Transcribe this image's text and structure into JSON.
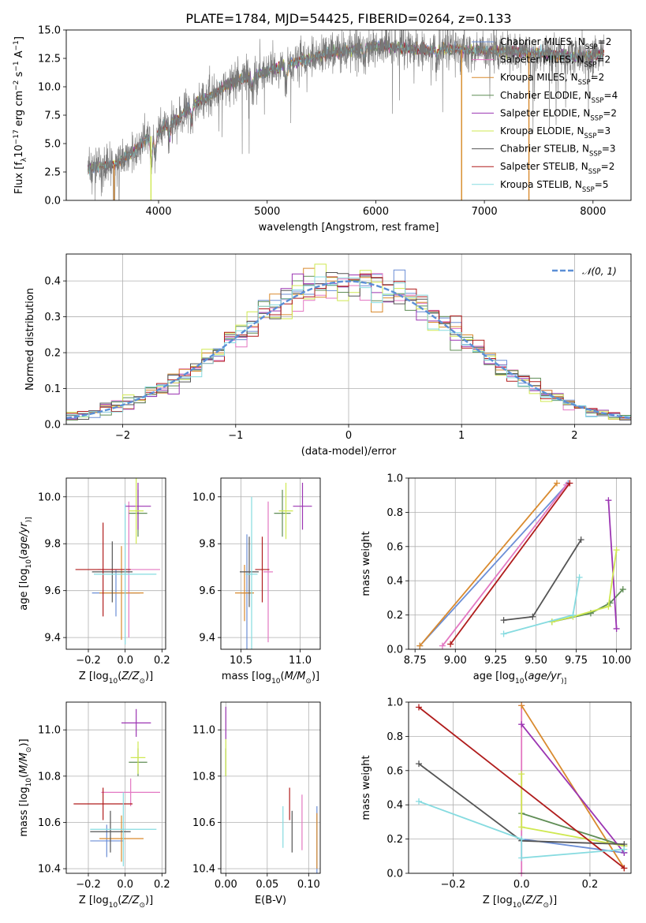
{
  "figure_title": "PLATE=1784, MJD=54425, FIBERID=0264, z=0.133",
  "series_colors": [
    "#6b8ed6",
    "#e377c2",
    "#d98a2e",
    "#5f8d55",
    "#9b34b2",
    "#cfe850",
    "#555555",
    "#b01c1c",
    "#86dbe0"
  ],
  "legend_entries": [
    {
      "name": "Chabrier MILES, N",
      "sub": "SSP",
      "suffix": "=2"
    },
    {
      "name": "Salpeter MILES, N",
      "sub": "SSP",
      "suffix": "=2"
    },
    {
      "name": "Kroupa MILES, N",
      "sub": "SSP",
      "suffix": "=2"
    },
    {
      "name": "Chabrier ELODIE, N",
      "sub": "SSP",
      "suffix": "=4"
    },
    {
      "name": "Salpeter ELODIE, N",
      "sub": "SSP",
      "suffix": "=2"
    },
    {
      "name": "Kroupa ELODIE, N",
      "sub": "SSP",
      "suffix": "=3"
    },
    {
      "name": "Chabrier STELIB, N",
      "sub": "SSP",
      "suffix": "=3"
    },
    {
      "name": "Salpeter STELIB, N",
      "sub": "SSP",
      "suffix": "=2"
    },
    {
      "name": "Kroupa STELIB, N",
      "sub": "SSP",
      "suffix": "=5"
    }
  ],
  "hist_legend": "𝒩(0, 1)",
  "chart_data": [
    {
      "id": "spectrum",
      "type": "line",
      "title": "PLATE=1784, MJD=54425, FIBERID=0264, z=0.133",
      "xlabel": "wavelength [Angstrom, rest frame]",
      "ylabel_parts": [
        "Flux [f",
        "λ",
        "10",
        "−17",
        " erg cm",
        "−2",
        " s",
        "−1",
        " A",
        "−1",
        "]"
      ],
      "xlim": [
        3150,
        8350
      ],
      "ylim": [
        0,
        15
      ],
      "xticks": [
        4000,
        5000,
        6000,
        7000,
        8000
      ],
      "xtick_labels": [
        "4000",
        "5000",
        "6000",
        "7000",
        "8000"
      ],
      "yticks": [
        0,
        2.5,
        5,
        7.5,
        10,
        12.5,
        15
      ],
      "ytick_labels": [
        "0.0",
        "2.5",
        "5.0",
        "7.5",
        "10.0",
        "12.5",
        "15.0"
      ],
      "grid": false,
      "legend_position": "right",
      "x_range": [
        3350,
        8100
      ],
      "continuum_knots": {
        "x": [
          3350,
          3500,
          3600,
          3700,
          3800,
          3900,
          4000,
          4100,
          4200,
          4300,
          4500,
          4700,
          4900,
          5100,
          5300,
          5500,
          5800,
          6000,
          6300,
          6500,
          6700,
          7000,
          7300,
          7600,
          7800,
          8000,
          8100
        ],
        "y": [
          2.8,
          3.0,
          3.2,
          3.8,
          4.5,
          5.5,
          6.0,
          6.8,
          7.3,
          8.4,
          9.3,
          10.5,
          11.0,
          11.7,
          12.3,
          12.8,
          13.3,
          13.6,
          13.4,
          13.2,
          13.3,
          13.2,
          13.1,
          12.9,
          12.6,
          12.8,
          13.0
        ]
      },
      "absorption_lines": [
        {
          "x": 3934,
          "depth": 2.5
        },
        {
          "x": 3969,
          "depth": 2.0
        },
        {
          "x": 4102,
          "depth": 1.2
        },
        {
          "x": 4304,
          "depth": 1.6
        },
        {
          "x": 4861,
          "depth": 1.0
        },
        {
          "x": 5175,
          "depth": 1.4
        },
        {
          "x": 5892,
          "depth": 1.2
        },
        {
          "x": 6563,
          "depth": 0.6
        }
      ],
      "dropouts": [
        {
          "x": 3590,
          "series": 2
        },
        {
          "x": 3930,
          "series": 5
        },
        {
          "x": 6790,
          "series": 5
        },
        {
          "x": 6790,
          "series": 2
        },
        {
          "x": 7410,
          "series": 2
        }
      ]
    },
    {
      "id": "residual-hist",
      "type": "bar",
      "xlabel": "(data-model)/error",
      "ylabel": "Normed distribution",
      "xlim": [
        -2.5,
        2.5
      ],
      "ylim": [
        0,
        0.475
      ],
      "xticks": [
        -2,
        -1,
        0,
        1,
        2
      ],
      "xtick_labels": [
        "−2",
        "−1",
        "0",
        "1",
        "2"
      ],
      "yticks": [
        0,
        0.1,
        0.2,
        0.3,
        0.4
      ],
      "ytick_labels": [
        "0.0",
        "0.1",
        "0.2",
        "0.3",
        "0.4"
      ],
      "grid": true,
      "legend_position": "top-right",
      "bin_width": 0.1,
      "reference_curve": "normal(0,1)"
    },
    {
      "id": "age-vs-Z",
      "type": "scatter",
      "xlabel_parts": [
        "Z [log",
        "10",
        "(",
        "Z/Z",
        "⊙",
        ")]"
      ],
      "ylabel_parts": [
        "age  [log",
        "10",
        "(",
        "age/yr",
        ")]"
      ],
      "xlim": [
        -0.32,
        0.22
      ],
      "ylim": [
        9.35,
        10.08
      ],
      "xticks": [
        -0.2,
        0.0,
        0.2
      ],
      "xtick_labels": [
        "−0.2",
        "0.0",
        "0.2"
      ],
      "yticks": [
        9.4,
        9.6,
        9.8,
        10.0
      ],
      "ytick_labels": [
        "9.4",
        "9.6",
        "9.8",
        "10.0"
      ],
      "grid": true,
      "points": [
        {
          "series": 0,
          "x": -0.05,
          "xerr": 0.13,
          "y": 9.59,
          "yerr": 0.1
        },
        {
          "series": 1,
          "x": 0.02,
          "xerr": 0.17,
          "y": 9.69,
          "yerr": 0.29
        },
        {
          "series": 2,
          "x": -0.02,
          "xerr": 0.12,
          "y": 9.59,
          "yerr": 0.2
        },
        {
          "series": 3,
          "x": 0.07,
          "xerr": 0.05,
          "y": 9.93,
          "yerr": 0.1
        },
        {
          "series": 4,
          "x": 0.07,
          "xerr": 0.07,
          "y": 9.96,
          "yerr": 0.1
        },
        {
          "series": 5,
          "x": 0.06,
          "xerr": 0.04,
          "y": 9.94,
          "yerr": 0.14
        },
        {
          "series": 6,
          "x": -0.07,
          "xerr": 0.11,
          "y": 9.68,
          "yerr": 0.13
        },
        {
          "series": 7,
          "x": -0.12,
          "xerr": 0.15,
          "y": 9.69,
          "yerr": 0.2
        },
        {
          "series": 8,
          "x": 0.0,
          "xerr": 0.17,
          "y": 9.67,
          "yerr": 0.3
        }
      ]
    },
    {
      "id": "age-vs-mass",
      "type": "scatter",
      "xlabel_parts": [
        "mass [log",
        "10",
        "(",
        "M/M",
        "⊙",
        ")]"
      ],
      "ylabel": "",
      "xlim": [
        10.33,
        11.17
      ],
      "ylim": [
        9.35,
        10.08
      ],
      "xticks": [
        10.5,
        11.0
      ],
      "xtick_labels": [
        "10.5",
        "11.0"
      ],
      "yticks": [
        9.4,
        9.6,
        9.8,
        10.0
      ],
      "ytick_labels": [
        "9.4",
        "9.6",
        "9.8",
        "10.0"
      ],
      "grid": true,
      "points": [
        {
          "series": 0,
          "x": 10.55,
          "xerr": 0.05,
          "y": 9.59,
          "yerr": 0.25
        },
        {
          "series": 1,
          "x": 10.73,
          "xerr": 0.04,
          "y": 9.68,
          "yerr": 0.3
        },
        {
          "series": 2,
          "x": 10.53,
          "xerr": 0.08,
          "y": 9.59,
          "yerr": 0.12
        },
        {
          "series": 3,
          "x": 10.85,
          "xerr": 0.07,
          "y": 9.93,
          "yerr": 0.1
        },
        {
          "series": 4,
          "x": 11.02,
          "xerr": 0.08,
          "y": 9.96,
          "yerr": 0.1
        },
        {
          "series": 5,
          "x": 10.88,
          "xerr": 0.06,
          "y": 9.94,
          "yerr": 0.12
        },
        {
          "series": 6,
          "x": 10.57,
          "xerr": 0.08,
          "y": 9.68,
          "yerr": 0.15
        },
        {
          "series": 7,
          "x": 10.68,
          "xerr": 0.06,
          "y": 9.69,
          "yerr": 0.14
        },
        {
          "series": 8,
          "x": 10.59,
          "xerr": 0.05,
          "y": 9.67,
          "yerr": 0.33
        }
      ]
    },
    {
      "id": "massweight-vs-age",
      "type": "line",
      "xlabel_parts": [
        "age  [log",
        "10",
        "(",
        "age/yr",
        ")]"
      ],
      "ylabel": "mass weight",
      "xlim": [
        8.71,
        10.09
      ],
      "ylim": [
        0,
        1
      ],
      "xticks": [
        8.75,
        9.0,
        9.25,
        9.5,
        9.75,
        10.0
      ],
      "xtick_labels": [
        "8.75",
        "9.00",
        "9.25",
        "9.50",
        "9.75",
        "10.00"
      ],
      "yticks": [
        0,
        0.2,
        0.4,
        0.6,
        0.8,
        1.0
      ],
      "ytick_labels": [
        "0.0",
        "0.2",
        "0.4",
        "0.6",
        "0.8",
        "1.0"
      ],
      "grid": true,
      "series": [
        {
          "series": 0,
          "x": [
            8.78,
            9.7
          ],
          "y": [
            0.02,
            0.97
          ]
        },
        {
          "series": 1,
          "x": [
            8.92,
            9.69
          ],
          "y": [
            0.02,
            0.96
          ]
        },
        {
          "series": 2,
          "x": [
            8.78,
            9.63
          ],
          "y": [
            0.02,
            0.97
          ]
        },
        {
          "series": 3,
          "x": [
            9.6,
            9.84,
            9.96,
            10.04
          ],
          "y": [
            0.16,
            0.21,
            0.27,
            0.35
          ]
        },
        {
          "series": 4,
          "x": [
            9.95,
            10.0
          ],
          "y": [
            0.87,
            0.12
          ]
        },
        {
          "series": 5,
          "x": [
            9.6,
            9.73,
            9.95,
            10.0
          ],
          "y": [
            0.16,
            0.19,
            0.25,
            0.58
          ]
        },
        {
          "series": 6,
          "x": [
            9.3,
            9.48,
            9.78
          ],
          "y": [
            0.17,
            0.19,
            0.64
          ]
        },
        {
          "series": 7,
          "x": [
            8.97,
            9.71
          ],
          "y": [
            0.03,
            0.97
          ]
        },
        {
          "series": 8,
          "x": [
            9.3,
            9.73,
            9.77
          ],
          "y": [
            0.09,
            0.2,
            0.42
          ]
        }
      ]
    },
    {
      "id": "mass-vs-Z",
      "type": "scatter",
      "xlabel_parts": [
        "Z [log",
        "10",
        "(",
        "Z/Z",
        "⊙",
        ")]"
      ],
      "ylabel_parts": [
        "mass [log",
        "10",
        "(",
        "M/M",
        "⊙",
        ")]"
      ],
      "xlim": [
        -0.32,
        0.22
      ],
      "ylim": [
        10.38,
        11.12
      ],
      "xticks": [
        -0.2,
        0.0,
        0.2
      ],
      "xtick_labels": [
        "−0.2",
        "0.0",
        "0.2"
      ],
      "yticks": [
        10.4,
        10.6,
        10.8,
        11.0
      ],
      "ytick_labels": [
        "10.4",
        "10.6",
        "10.8",
        "11.0"
      ],
      "grid": true,
      "points": [
        {
          "series": 0,
          "x": -0.1,
          "xerr": 0.09,
          "y": 10.52,
          "yerr": 0.07
        },
        {
          "series": 1,
          "x": 0.03,
          "xerr": 0.16,
          "y": 10.73,
          "yerr": 0.06
        },
        {
          "series": 2,
          "x": -0.02,
          "xerr": 0.12,
          "y": 10.53,
          "yerr": 0.1
        },
        {
          "series": 3,
          "x": 0.07,
          "xerr": 0.05,
          "y": 10.86,
          "yerr": 0.06
        },
        {
          "series": 4,
          "x": 0.06,
          "xerr": 0.08,
          "y": 11.03,
          "yerr": 0.06
        },
        {
          "series": 5,
          "x": 0.07,
          "xerr": 0.04,
          "y": 10.88,
          "yerr": 0.07
        },
        {
          "series": 6,
          "x": -0.08,
          "xerr": 0.11,
          "y": 10.56,
          "yerr": 0.09
        },
        {
          "series": 7,
          "x": -0.12,
          "xerr": 0.16,
          "y": 10.68,
          "yerr": 0.07
        },
        {
          "series": 8,
          "x": -0.01,
          "xerr": 0.18,
          "y": 10.57,
          "yerr": 0.16
        }
      ]
    },
    {
      "id": "mass-vs-EBV",
      "type": "scatter",
      "xlabel": "E(B-V)",
      "ylabel": "",
      "xlim": [
        -0.006,
        0.114
      ],
      "ylim": [
        10.38,
        11.12
      ],
      "xticks": [
        0.0,
        0.05,
        0.1
      ],
      "xtick_labels": [
        "0.00",
        "0.05",
        "0.10"
      ],
      "yticks": [
        10.4,
        10.6,
        10.8,
        11.0
      ],
      "ytick_labels": [
        "10.4",
        "10.6",
        "10.8",
        "11.0"
      ],
      "grid": true,
      "points": [
        {
          "series": 0,
          "x": 0.11,
          "xerr": 0,
          "y": 10.52,
          "yerr": 0.15
        },
        {
          "series": 1,
          "x": 0.092,
          "xerr": 0,
          "y": 10.6,
          "yerr": 0.12
        },
        {
          "series": 2,
          "x": 0.11,
          "xerr": 0,
          "y": 10.52,
          "yerr": 0.12
        },
        {
          "series": 3,
          "x": 0.0,
          "xerr": 0,
          "y": 10.86,
          "yerr": 0.06
        },
        {
          "series": 4,
          "x": 0.0,
          "xerr": 0,
          "y": 11.03,
          "yerr": 0.07
        },
        {
          "series": 5,
          "x": 0.0,
          "xerr": 0,
          "y": 10.88,
          "yerr": 0.08
        },
        {
          "series": 6,
          "x": 0.08,
          "xerr": 0,
          "y": 10.56,
          "yerr": 0.09
        },
        {
          "series": 7,
          "x": 0.077,
          "xerr": 0,
          "y": 10.68,
          "yerr": 0.07
        },
        {
          "series": 8,
          "x": 0.069,
          "xerr": 0,
          "y": 10.58,
          "yerr": 0.09
        }
      ]
    },
    {
      "id": "massweight-vs-Z",
      "type": "line",
      "xlabel_parts": [
        "Z [log",
        "10",
        "(",
        "Z/Z",
        "⊙",
        ")]"
      ],
      "ylabel": "mass weight",
      "xlim": [
        -0.33,
        0.32
      ],
      "ylim": [
        0,
        1
      ],
      "xticks": [
        -0.2,
        0.0,
        0.2
      ],
      "xtick_labels": [
        "−0.2",
        "0.0",
        "0.2"
      ],
      "yticks": [
        0,
        0.2,
        0.4,
        0.6,
        0.8,
        1.0
      ],
      "ytick_labels": [
        "0.0",
        "0.2",
        "0.4",
        "0.6",
        "0.8",
        "1.0"
      ],
      "grid": true,
      "series": [
        {
          "series": 0,
          "x": [
            0.0,
            0.3
          ],
          "y": [
            0.2,
            0.12
          ]
        },
        {
          "series": 1,
          "x": [
            0.0,
            0.0
          ],
          "y": [
            0.0,
            0.98
          ]
        },
        {
          "series": 2,
          "x": [
            0.0,
            0.3
          ],
          "y": [
            0.98,
            0.03
          ]
        },
        {
          "series": 3,
          "x": [
            0.0,
            0.3
          ],
          "y": [
            0.35,
            0.16
          ]
        },
        {
          "series": 4,
          "x": [
            0.0,
            0.3
          ],
          "y": [
            0.87,
            0.12
          ]
        },
        {
          "series": 5,
          "x": [
            0.0,
            0.0,
            0.3
          ],
          "y": [
            0.58,
            0.27,
            0.16
          ]
        },
        {
          "series": 6,
          "x": [
            -0.3,
            0.0,
            0.3
          ],
          "y": [
            0.64,
            0.19,
            0.17
          ]
        },
        {
          "series": 7,
          "x": [
            -0.3,
            0.3
          ],
          "y": [
            0.97,
            0.03
          ]
        },
        {
          "series": 8,
          "x": [
            -0.3,
            0.0,
            0.0,
            0.3
          ],
          "y": [
            0.42,
            0.2,
            0.09,
            0.14
          ]
        }
      ]
    }
  ]
}
